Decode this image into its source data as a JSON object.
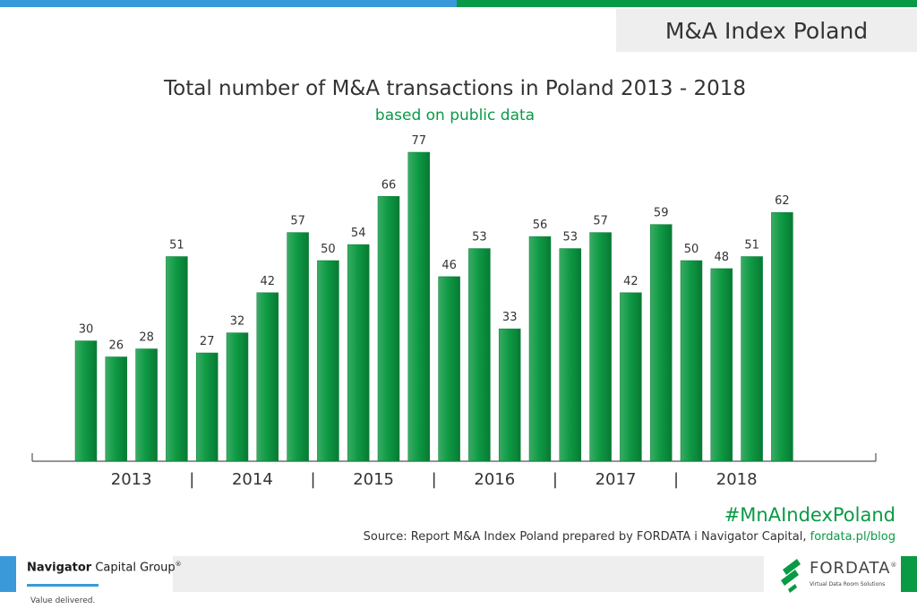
{
  "header": {
    "badge": "M&A Index Poland"
  },
  "footer": {
    "hashtag": "#MnAIndexPoland",
    "source_text": "Source: Report M&A Index Poland prepared by FORDATA i Navigator Capital,",
    "source_link": "fordata.pl/blog",
    "navigator_logo": {
      "name_bold": "Navigator",
      "name_rest": "Capital Group",
      "registered": "®",
      "tagline": "Value delivered."
    },
    "fordata_logo": {
      "name": "FORDATA",
      "registered": "®",
      "tagline": "Virtual Data Room Solutions"
    }
  },
  "colors": {
    "bar": "#0f9a44",
    "accent_green": "#0a9a45",
    "accent_blue": "#3a9ad9"
  },
  "chart_data": {
    "type": "bar",
    "title": "Total number of M&A transactions in Poland 2013 - 2018",
    "subtitle": "based on public data",
    "xlabel": "",
    "ylabel": "",
    "ylim": [
      0,
      77
    ],
    "grid": false,
    "year_labels": [
      "2013",
      "2014",
      "2015",
      "2016",
      "2017",
      "2018"
    ],
    "year_separator": "|",
    "values": [
      30,
      26,
      28,
      51,
      27,
      32,
      42,
      57,
      50,
      54,
      66,
      77,
      46,
      53,
      33,
      56,
      53,
      57,
      42,
      59,
      50,
      48,
      51,
      62
    ]
  }
}
